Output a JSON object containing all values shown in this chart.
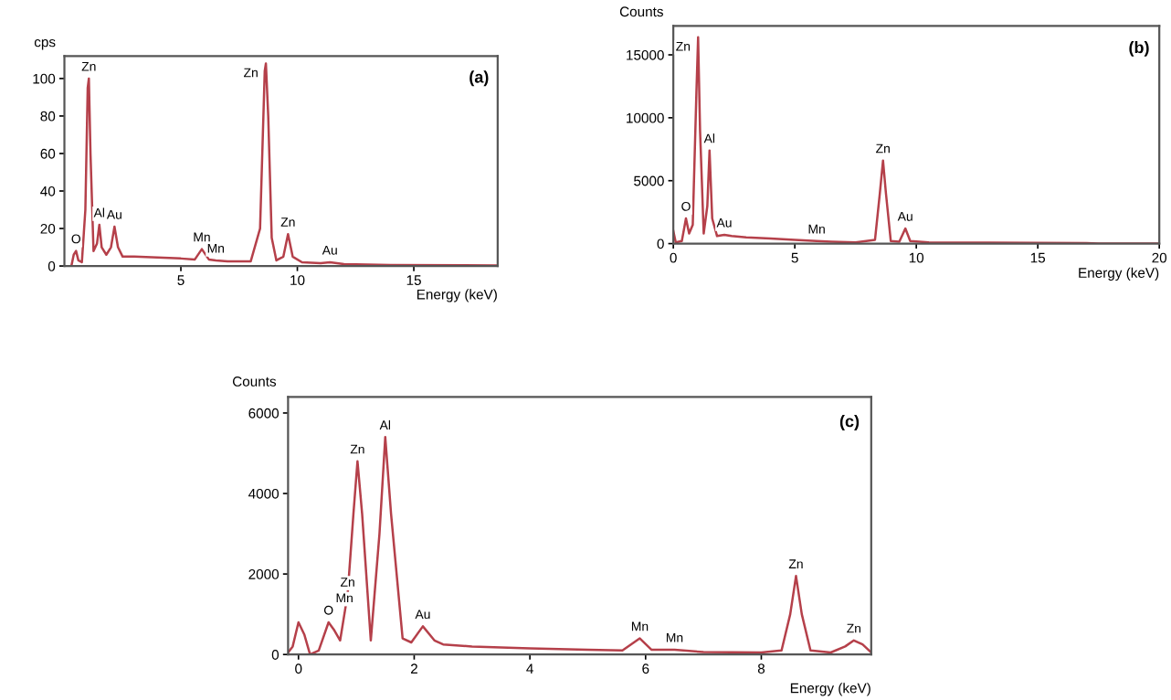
{
  "chart_data": [
    {
      "type": "line",
      "ylabel": "cps",
      "xlabel": "Energy (keV)",
      "xlim": [
        0,
        18.6
      ],
      "ylim": [
        0,
        112
      ],
      "xticks": [
        5,
        10,
        15
      ],
      "yticks": [
        0,
        20,
        40,
        60,
        80,
        100
      ],
      "grid": false,
      "x": [
        0.3,
        0.4,
        0.5,
        0.6,
        0.75,
        0.9,
        1.0,
        1.05,
        1.12,
        1.25,
        1.4,
        1.5,
        1.6,
        1.8,
        2.0,
        2.15,
        2.3,
        2.5,
        3,
        4,
        5,
        5.6,
        5.9,
        6.2,
        6.5,
        7,
        8,
        8.4,
        8.6,
        8.65,
        8.75,
        8.9,
        9.1,
        9.4,
        9.6,
        9.8,
        10.2,
        11,
        11.4,
        12,
        14,
        18.6
      ],
      "series": [
        {
          "color": "#b5404a",
          "values": [
            0,
            6,
            8,
            3,
            2,
            30,
            95,
            100,
            60,
            8,
            12,
            22,
            10,
            6,
            10,
            21,
            10,
            5,
            5,
            4.5,
            4,
            3.5,
            9,
            3.5,
            3,
            2.5,
            2.5,
            20,
            104,
            108,
            80,
            15,
            3,
            5,
            17,
            5,
            2,
            1.5,
            2,
            1,
            0.5,
            0.3
          ]
        }
      ],
      "annotations": [
        "(a)",
        {
          "text": "O",
          "x": 0.5,
          "y": 8
        },
        {
          "text": "Zn",
          "x": 1.05,
          "y": 100
        },
        {
          "text": "Al",
          "x": 1.5,
          "y": 22
        },
        {
          "text": "Au",
          "x": 2.15,
          "y": 21
        },
        {
          "text": "Mn",
          "x": 5.9,
          "y": 9
        },
        {
          "text": "Mn",
          "x": 6.5,
          "y": 3
        },
        {
          "text": "Zn",
          "x": 8.65,
          "y": 108
        },
        {
          "text": "Zn",
          "x": 9.6,
          "y": 17
        },
        {
          "text": "Au",
          "x": 11.4,
          "y": 2
        }
      ]
    },
    {
      "type": "line",
      "ylabel": "Counts",
      "xlabel": "Energy (keV)",
      "xlim": [
        0,
        20
      ],
      "ylim": [
        0,
        17300
      ],
      "xticks": [
        0,
        5,
        10,
        15,
        20
      ],
      "yticks": [
        0,
        5000,
        10000,
        15000
      ],
      "grid": false,
      "x": [
        0.0,
        0.1,
        0.35,
        0.52,
        0.65,
        0.8,
        0.95,
        1.02,
        1.1,
        1.25,
        1.4,
        1.49,
        1.6,
        1.8,
        2.1,
        2.4,
        3,
        4,
        5,
        5.9,
        6.5,
        7.5,
        8.3,
        8.5,
        8.63,
        8.75,
        8.95,
        9.3,
        9.55,
        9.75,
        10.5,
        13,
        17,
        17.5,
        20
      ],
      "series": [
        {
          "color": "#b5404a",
          "values": [
            1000,
            100,
            200,
            2000,
            800,
            1500,
            12000,
            16400,
            9000,
            800,
            3000,
            7400,
            2000,
            600,
            700,
            600,
            500,
            400,
            300,
            200,
            150,
            100,
            300,
            4000,
            6600,
            4000,
            200,
            150,
            1200,
            200,
            100,
            80,
            50,
            0,
            0
          ]
        }
      ],
      "annotations": [
        "(b)",
        {
          "text": "O",
          "x": 0.52,
          "y": 2000
        },
        {
          "text": "Zn",
          "x": 1.02,
          "y": 16400
        },
        {
          "text": "Al",
          "x": 1.49,
          "y": 7400
        },
        {
          "text": "Au",
          "x": 2.1,
          "y": 700
        },
        {
          "text": "Mn",
          "x": 5.9,
          "y": 200
        },
        {
          "text": "Zn",
          "x": 8.63,
          "y": 6600
        },
        {
          "text": "Au",
          "x": 9.55,
          "y": 1200
        }
      ]
    },
    {
      "type": "line",
      "ylabel": "Counts",
      "xlabel": "Energy (keV)",
      "xlim": [
        -0.18,
        9.9
      ],
      "ylim": [
        0,
        6400
      ],
      "xticks": [
        0,
        2,
        4,
        6,
        8
      ],
      "yticks": [
        0,
        2000,
        4000,
        6000
      ],
      "grid": false,
      "x": [
        -0.18,
        -0.1,
        0.0,
        0.1,
        0.2,
        0.35,
        0.52,
        0.62,
        0.72,
        0.85,
        0.95,
        1.02,
        1.1,
        1.25,
        1.4,
        1.5,
        1.6,
        1.8,
        1.95,
        2.15,
        2.35,
        2.5,
        3,
        4,
        5,
        5.6,
        5.9,
        6.1,
        6.5,
        7,
        8,
        8.35,
        8.5,
        8.6,
        8.7,
        8.85,
        9.2,
        9.45,
        9.6,
        9.75,
        9.9
      ],
      "series": [
        {
          "color": "#b5404a",
          "values": [
            50,
            200,
            800,
            500,
            0,
            100,
            800,
            600,
            350,
            1500,
            3500,
            4800,
            3500,
            350,
            3000,
            5400,
            3500,
            400,
            300,
            700,
            350,
            250,
            200,
            150,
            120,
            100,
            400,
            120,
            120,
            60,
            50,
            100,
            1000,
            1950,
            1000,
            100,
            50,
            200,
            350,
            250,
            50
          ]
        }
      ],
      "annotations": [
        "(c)",
        {
          "text": "O",
          "x": 0.52,
          "y": 800
        },
        {
          "text": "Mn",
          "x": 0.62,
          "y": 600
        },
        {
          "text": "Zn",
          "x": 0.85,
          "y": 1500
        },
        {
          "text": "Zn",
          "x": 1.02,
          "y": 4800
        },
        {
          "text": "Al",
          "x": 1.5,
          "y": 5400
        },
        {
          "text": "Au",
          "x": 2.15,
          "y": 700
        },
        {
          "text": "Mn",
          "x": 5.9,
          "y": 400
        },
        {
          "text": "Mn",
          "x": 6.5,
          "y": 120
        },
        {
          "text": "Zn",
          "x": 8.6,
          "y": 1950
        },
        {
          "text": "Zn",
          "x": 9.6,
          "y": 350
        }
      ]
    }
  ]
}
